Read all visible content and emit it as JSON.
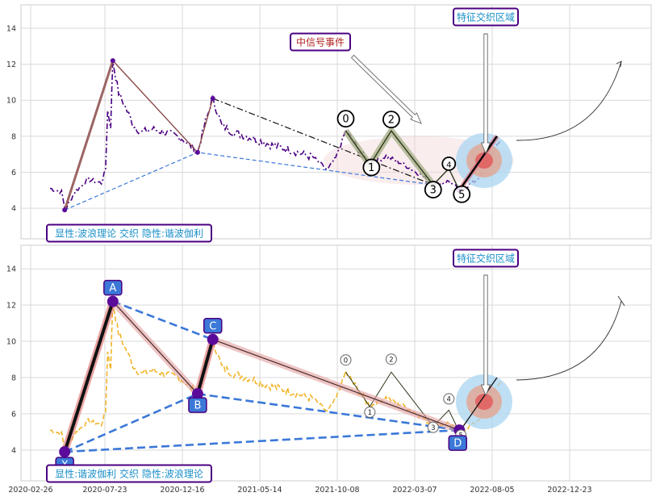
{
  "chart_data": [
    {
      "type": "line",
      "panel": "top",
      "ylim": [
        2.3,
        15.3
      ],
      "y_ticks": [
        "4",
        "6",
        "8",
        "10",
        "12",
        "14"
      ],
      "grid": true,
      "price_color": "#4b0082",
      "wave_points": [
        {
          "x": "2020-05-01",
          "y": 3.9
        },
        {
          "x": "2020-08-01",
          "y": 12.2
        },
        {
          "x": "2021-01-10",
          "y": 7.1
        },
        {
          "x": "2021-02-08",
          "y": 10.1
        }
      ],
      "abcd_points": [
        {
          "label": "0",
          "x": "2021-10-20",
          "y": 8.3
        },
        {
          "label": "1",
          "x": "2021-12-05",
          "y": 6.4
        },
        {
          "label": "2",
          "x": "2022-01-15",
          "y": 8.3
        },
        {
          "label": "3",
          "x": "2022-04-05",
          "y": 5.3
        },
        {
          "label": "4",
          "x": "2022-05-05",
          "y": 6.2
        },
        {
          "label": "5",
          "x": "2022-05-25",
          "y": 5.0
        }
      ],
      "breakout_end": {
        "x": "2022-08-05",
        "y": 8.0
      },
      "annotations": {
        "event": "中信号事件",
        "zone": "特征交织区域",
        "caption": "显性:波浪理论 交织 隐性:谐波伽利"
      }
    },
    {
      "type": "line",
      "panel": "bottom",
      "ylim": [
        2.3,
        15.3
      ],
      "y_ticks": [
        "4",
        "6",
        "8",
        "10",
        "12",
        "14"
      ],
      "x_ticks": [
        "2020-02-26",
        "2020-07-23",
        "2020-12-16",
        "2021-05-14",
        "2021-10-08",
        "2022-03-07",
        "2022-08-05",
        "2022-12-23"
      ],
      "grid": true,
      "price_color": "#f0b429",
      "harmonic_points": [
        {
          "label": "X",
          "x": "2020-05-01",
          "y": 3.9
        },
        {
          "label": "A",
          "x": "2020-08-01",
          "y": 12.2
        },
        {
          "label": "B",
          "x": "2021-01-10",
          "y": 7.1
        },
        {
          "label": "C",
          "x": "2021-02-08",
          "y": 10.1
        },
        {
          "label": "D",
          "x": "2022-05-25",
          "y": 5.1
        }
      ],
      "wave_labels": [
        {
          "label": "0",
          "x": "2021-10-20",
          "y": 8.3
        },
        {
          "label": "1",
          "x": "2021-12-05",
          "y": 6.4
        },
        {
          "label": "2",
          "x": "2022-01-15",
          "y": 8.3
        },
        {
          "label": "3",
          "x": "2022-04-05",
          "y": 5.3
        },
        {
          "label": "4",
          "x": "2022-05-05",
          "y": 6.2
        },
        {
          "label": "5",
          "x": "2022-05-25",
          "y": 5.0
        }
      ],
      "breakout_end": {
        "x": "2022-08-05",
        "y": 8.0
      },
      "annotations": {
        "zone": "特征交织区域",
        "caption": "显性:谐波伽利 交织 隐性:波浪理论"
      }
    }
  ],
  "colors": {
    "grid": "#d9d9d9",
    "axis_text": "#333333",
    "accent_box": "#4b0082",
    "caption_text": "#1a8fc9",
    "event_text": "#b22222",
    "harmonic_label_bg": "#3b78d8",
    "harmonic_dot": "#5a0b9a",
    "dashed_blue": "#3b78d8",
    "brown_line": "#8b4a4a"
  }
}
